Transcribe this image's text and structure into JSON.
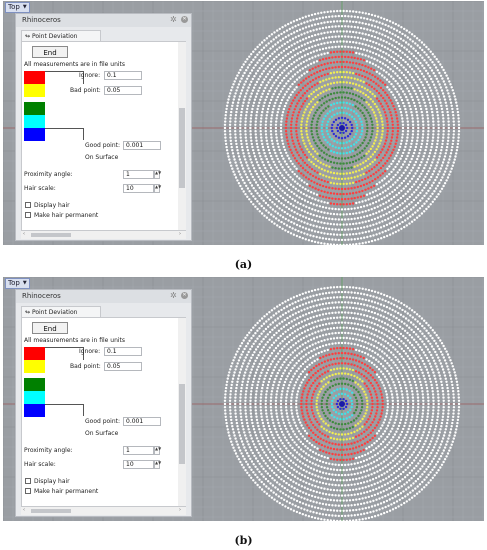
{
  "figures": [
    {
      "id": "a",
      "caption": "(a)",
      "viewport_label": "Top",
      "panel": {
        "title": "Rhinoceros",
        "tab": "Point Deviation",
        "end_label": "End",
        "units_note": "All measurements are in file units",
        "ignore_label": "Ignore:",
        "ignore_value": "0.1",
        "bad_label": "Bad point:",
        "bad_value": "0.05",
        "good_label": "Good point:",
        "good_value": "0.001",
        "on_surface": "On Surface",
        "proximity_label": "Proximity angle:",
        "proximity_value": "1",
        "hair_scale_label": "Hair scale:",
        "hair_scale_value": "10",
        "display_hair": "Display hair",
        "make_permanent": "Make hair permanent"
      },
      "swatches": [
        "#ff0000",
        "#ffff00",
        "#008000",
        "#00ffff",
        "#0000ff"
      ],
      "bands": [
        {
          "color": "#ffffff",
          "from": 16,
          "to": 23
        },
        {
          "color": "#ff3d3d",
          "from": 12,
          "to": 16
        },
        {
          "color": "#f2ef52",
          "from": 9,
          "to": 12
        },
        {
          "color": "#3d8a3d",
          "from": 6,
          "to": 9
        },
        {
          "color": "#3fe3e8",
          "from": 3,
          "to": 6
        },
        {
          "color": "#2b2bd8",
          "from": 0,
          "to": 3
        }
      ]
    },
    {
      "id": "b",
      "caption": "(b)",
      "viewport_label": "Top",
      "panel": {
        "title": "Rhinoceros",
        "tab": "Point Deviation",
        "end_label": "End",
        "units_note": "All measurements are in file units",
        "ignore_label": "Ignore:",
        "ignore_value": "0.1",
        "bad_label": "Bad point:",
        "bad_value": "0.05",
        "good_label": "Good point:",
        "good_value": "0.001",
        "on_surface": "On Surface",
        "proximity_label": "Proximity angle:",
        "proximity_value": "1",
        "hair_scale_label": "Hair scale:",
        "hair_scale_value": "10",
        "display_hair": "Display hair",
        "make_permanent": "Make hair permanent"
      },
      "swatches": [
        "#ff0000",
        "#ffff00",
        "#008000",
        "#00ffff",
        "#0000ff"
      ],
      "bands": [
        {
          "color": "#ffffff",
          "from": 12,
          "to": 23
        },
        {
          "color": "#ff3d3d",
          "from": 8,
          "to": 12
        },
        {
          "color": "#f2ef52",
          "from": 6,
          "to": 8
        },
        {
          "color": "#3d8a3d",
          "from": 4,
          "to": 6
        },
        {
          "color": "#3fe3e8",
          "from": 2,
          "to": 4
        },
        {
          "color": "#2b2bd8",
          "from": 0,
          "to": 2
        }
      ]
    }
  ]
}
